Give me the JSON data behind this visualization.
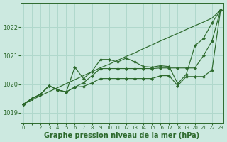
{
  "bg_color": "#cce9e0",
  "grid_color": "#b0d8cc",
  "line_color": "#2d6a2d",
  "marker_color": "#2d6a2d",
  "xlabel": "Graphe pression niveau de la mer (hPa)",
  "xlabel_fontsize": 7,
  "yticks": [
    1019,
    1020,
    1021,
    1022
  ],
  "xticks": [
    0,
    1,
    2,
    3,
    4,
    5,
    6,
    7,
    8,
    9,
    10,
    11,
    12,
    13,
    14,
    15,
    16,
    17,
    18,
    19,
    20,
    21,
    22,
    23
  ],
  "ylim": [
    1018.65,
    1022.85
  ],
  "xlim": [
    -0.3,
    23.3
  ],
  "series_straight": [
    1019.3,
    1019.45,
    1019.6,
    1019.74,
    1019.88,
    1020.02,
    1020.16,
    1020.3,
    1020.44,
    1020.58,
    1020.7,
    1020.84,
    1020.98,
    1021.1,
    1021.25,
    1021.38,
    1021.52,
    1021.65,
    1021.78,
    1021.92,
    1022.05,
    1022.18,
    1022.32,
    1022.6
  ],
  "series_high": [
    1019.3,
    1019.5,
    1019.65,
    1019.95,
    1019.8,
    1019.73,
    1020.6,
    1020.2,
    1020.45,
    1020.87,
    1020.87,
    1020.78,
    1020.92,
    1020.78,
    1020.62,
    1020.6,
    1020.65,
    1020.62,
    1020.02,
    1020.35,
    1021.35,
    1021.6,
    1022.15,
    1022.6
  ],
  "series_mid": [
    1019.3,
    1019.5,
    1019.65,
    1019.95,
    1019.8,
    1019.73,
    1019.9,
    1020.05,
    1020.3,
    1020.55,
    1020.55,
    1020.55,
    1020.55,
    1020.55,
    1020.55,
    1020.55,
    1020.57,
    1020.57,
    1020.57,
    1020.57,
    1020.57,
    1021.0,
    1021.52,
    1022.6
  ],
  "series_low": [
    1019.3,
    1019.5,
    1019.65,
    1019.95,
    1019.8,
    1019.73,
    1019.9,
    1019.92,
    1020.05,
    1020.2,
    1020.2,
    1020.2,
    1020.2,
    1020.2,
    1020.2,
    1020.2,
    1020.3,
    1020.3,
    1019.95,
    1020.27,
    1020.27,
    1020.27,
    1020.5,
    1022.6
  ]
}
